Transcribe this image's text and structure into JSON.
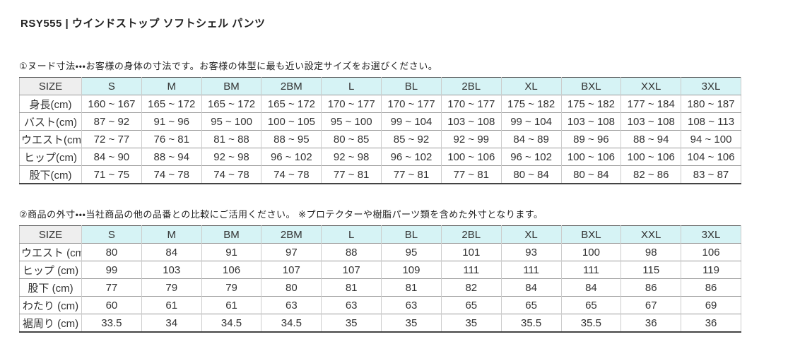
{
  "page": {
    "title": "RSY555 | ウインドストップ ソフトシェル パンツ"
  },
  "colors": {
    "header_bg": "#d6f3f5",
    "corner_bg": "#eeeeee",
    "label_bg": "#f3f3f3",
    "border_dark": "#444444",
    "border_mid": "#999999",
    "border_light": "#cccccc"
  },
  "sections": [
    {
      "intro": "①ヌード寸法・・・お客様の身体の寸法です。お客様の体型に最も近い設定サイズをお選びください。",
      "table": {
        "header": [
          "SIZE",
          "S",
          "M",
          "BM",
          "2BM",
          "L",
          "BL",
          "2BL",
          "XL",
          "BXL",
          "XXL",
          "3XL"
        ],
        "rows": [
          {
            "label": "身長(cm)",
            "values": [
              "160 ~ 167",
              "165 ~ 172",
              "165 ~ 172",
              "165 ~ 172",
              "170 ~ 177",
              "170 ~ 177",
              "170 ~ 177",
              "175 ~ 182",
              "175 ~ 182",
              "177 ~ 184",
              "180 ~ 187"
            ]
          },
          {
            "label": "バスト(cm)",
            "values": [
              "87 ~ 92",
              "91 ~ 96",
              "95 ~ 100",
              "100 ~ 105",
              "95 ~ 100",
              "99 ~ 104",
              "103 ~ 108",
              "99 ~ 104",
              "103 ~ 108",
              "103 ~ 108",
              "108 ~ 113"
            ]
          },
          {
            "label": "ウエスト(cm)",
            "values": [
              "72 ~ 77",
              "76 ~ 81",
              "81 ~ 88",
              "88 ~ 95",
              "80 ~ 85",
              "85 ~ 92",
              "92 ~ 99",
              "84 ~ 89",
              "89 ~ 96",
              "88 ~ 94",
              "94 ~ 100"
            ]
          },
          {
            "label": "ヒップ(cm)",
            "values": [
              "84 ~ 90",
              "88 ~ 94",
              "92 ~ 98",
              "96 ~ 102",
              "92 ~ 98",
              "96 ~ 102",
              "100 ~ 106",
              "96 ~ 102",
              "100 ~ 106",
              "100 ~ 106",
              "104 ~ 106"
            ]
          },
          {
            "label": "股下(cm)",
            "values": [
              "71 ~ 75",
              "74 ~ 78",
              "74 ~ 78",
              "74 ~ 78",
              "77 ~ 81",
              "77 ~ 81",
              "77 ~ 81",
              "80 ~ 84",
              "80 ~ 84",
              "82 ~ 86",
              "83 ~ 87"
            ]
          }
        ]
      }
    },
    {
      "intro": "②商品の外寸・・・当社商品の他の品番との比較にご活用ください。 ※プロテクターや樹脂パーツ類を含めた外寸となります。",
      "table": {
        "header": [
          "SIZE",
          "S",
          "M",
          "BM",
          "2BM",
          "L",
          "BL",
          "2BL",
          "XL",
          "BXL",
          "XXL",
          "3XL"
        ],
        "rows": [
          {
            "label": "ウエスト (cm)",
            "values": [
              "80",
              "84",
              "91",
              "97",
              "88",
              "95",
              "101",
              "93",
              "100",
              "98",
              "106"
            ]
          },
          {
            "label": "ヒップ (cm)",
            "values": [
              "99",
              "103",
              "106",
              "107",
              "107",
              "109",
              "111",
              "111",
              "111",
              "115",
              "119"
            ]
          },
          {
            "label": "股下 (cm)",
            "values": [
              "77",
              "79",
              "79",
              "80",
              "81",
              "81",
              "82",
              "84",
              "84",
              "86",
              "86"
            ]
          },
          {
            "label": "わたり (cm)",
            "values": [
              "60",
              "61",
              "61",
              "63",
              "63",
              "63",
              "65",
              "65",
              "65",
              "67",
              "69"
            ]
          },
          {
            "label": "裾周り (cm)",
            "values": [
              "33.5",
              "34",
              "34.5",
              "34.5",
              "35",
              "35",
              "35",
              "35.5",
              "35.5",
              "36",
              "36"
            ]
          }
        ]
      }
    }
  ]
}
